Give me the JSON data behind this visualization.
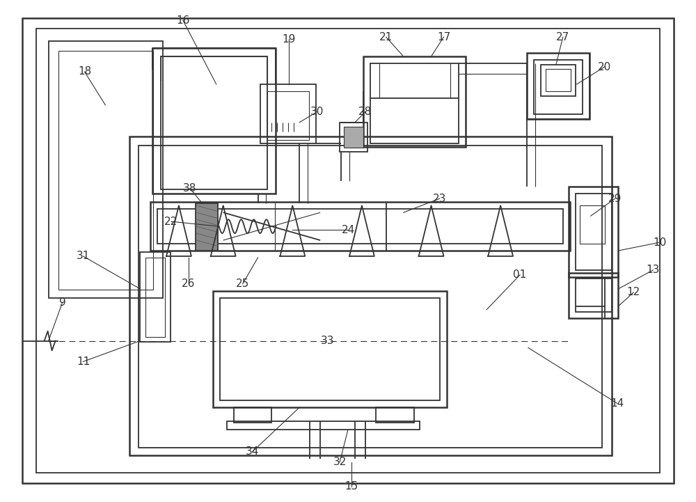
{
  "bg_color": "#ffffff",
  "lc": "#333333",
  "dark_fill": "#666666",
  "fig_w": 10.0,
  "fig_h": 7.21,
  "lw_thin": 0.8,
  "lw_med": 1.3,
  "lw_thick": 1.8,
  "font_size": 11
}
